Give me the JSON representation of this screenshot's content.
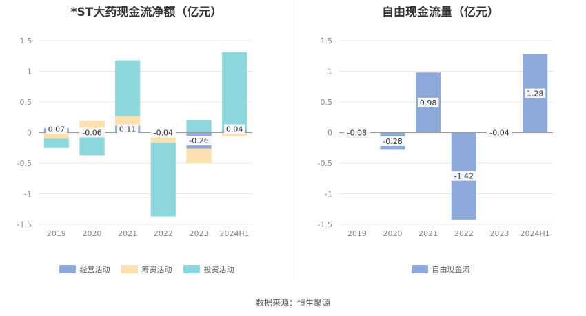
{
  "chart_data": [
    {
      "type": "bar",
      "stacked": true,
      "title": "*ST大药现金流净额（亿元）",
      "categories": [
        "2019",
        "2020",
        "2021",
        "2022",
        "2023",
        "2024H1"
      ],
      "series": [
        {
          "name": "经营活动",
          "color": "#8eaadb",
          "values": [
            0.07,
            -0.06,
            0.11,
            -0.04,
            -0.26,
            0.04
          ]
        },
        {
          "name": "筹资活动",
          "color": "#fde0b0",
          "values": [
            -0.1,
            0.19,
            0.16,
            -0.13,
            -0.24,
            -0.06
          ]
        },
        {
          "name": "投资活动",
          "color": "#8dd6dc",
          "values": [
            -0.15,
            -0.31,
            0.91,
            -1.2,
            0.2,
            1.27
          ]
        }
      ],
      "data_labels": [
        "0.07",
        "-0.06",
        "0.11",
        "-0.04",
        "-0.26",
        "0.04"
      ],
      "y_ticks": [
        "1.5",
        "1",
        "0.5",
        "0",
        "-0.5",
        "-1",
        "-1.5"
      ],
      "ylim": [
        -1.5,
        1.5
      ],
      "grid": true,
      "legend_position": "bottom"
    },
    {
      "type": "bar",
      "title": "自由现金流量（亿元）",
      "categories": [
        "2019",
        "2020",
        "2021",
        "2022",
        "2023",
        "2024H1"
      ],
      "series": [
        {
          "name": "自由现金流",
          "color": "#8eaadb",
          "values": [
            -0.08,
            -0.28,
            0.98,
            -1.42,
            -0.04,
            1.28
          ]
        }
      ],
      "data_labels": [
        "-0.08",
        "-0.28",
        "0.98",
        "-1.42",
        "-0.04",
        "1.28"
      ],
      "y_ticks": [
        "1.5",
        "1",
        "0.5",
        "0",
        "-0.5",
        "-1",
        "-1.5"
      ],
      "ylim": [
        -1.5,
        1.5
      ],
      "grid": true,
      "legend_position": "bottom"
    }
  ],
  "footer": {
    "source": "数据来源：恒生聚源"
  }
}
